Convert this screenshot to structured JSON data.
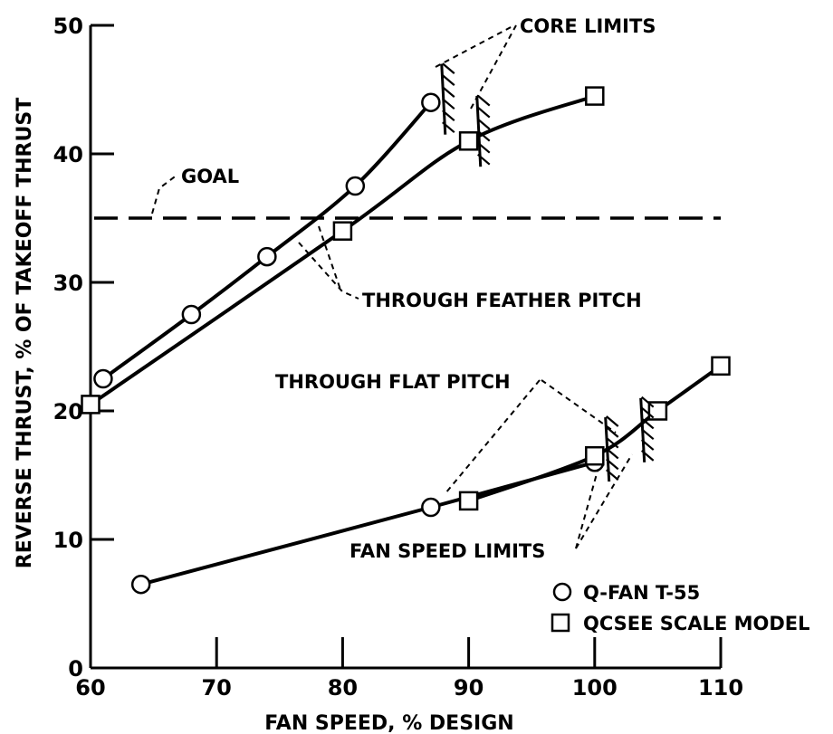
{
  "chart_data": {
    "type": "line",
    "title": "",
    "xlabel": "FAN SPEED, % DESIGN",
    "ylabel": "REVERSE THRUST, % OF TAKEOFF THRUST",
    "xlim": [
      60,
      110
    ],
    "ylim": [
      0,
      50
    ],
    "x_ticks": [
      "60",
      "70",
      "80",
      "90",
      "100",
      "110"
    ],
    "y_ticks": [
      "0",
      "10",
      "20",
      "30",
      "40",
      "50"
    ],
    "grid": false,
    "legend_placement": "bottom-right",
    "series": [
      {
        "name": "Q-FAN T-55",
        "marker": "circle",
        "branch": "feather",
        "points": [
          [
            61,
            22.5
          ],
          [
            68,
            27.5
          ],
          [
            74,
            32
          ],
          [
            81,
            37.5
          ],
          [
            87,
            44
          ]
        ]
      },
      {
        "name": "QCSEE SCALE MODEL",
        "marker": "square",
        "branch": "feather",
        "points": [
          [
            60,
            20.5
          ],
          [
            80,
            34
          ],
          [
            90,
            41
          ],
          [
            100,
            44.5
          ]
        ]
      },
      {
        "name": "Q-FAN T-55",
        "marker": "circle",
        "branch": "flat",
        "points": [
          [
            64,
            6.5
          ],
          [
            87,
            12.5
          ],
          [
            100,
            16
          ]
        ]
      },
      {
        "name": "QCSEE SCALE MODEL",
        "marker": "square",
        "branch": "flat",
        "points": [
          [
            90,
            13
          ],
          [
            100,
            16.5
          ],
          [
            105,
            20
          ],
          [
            110,
            23.5
          ]
        ]
      }
    ],
    "goal": {
      "label": "GOAL",
      "y": 35
    },
    "annotations": {
      "core_limits": "CORE LIMITS",
      "through_feather_pitch": "THROUGH FEATHER PITCH",
      "through_flat_pitch": "THROUGH FLAT PITCH",
      "fan_speed_limits": "FAN SPEED LIMITS"
    },
    "legend": [
      {
        "marker": "circle",
        "label": "Q-FAN T-55"
      },
      {
        "marker": "square",
        "label": "QCSEE SCALE MODEL"
      }
    ]
  }
}
